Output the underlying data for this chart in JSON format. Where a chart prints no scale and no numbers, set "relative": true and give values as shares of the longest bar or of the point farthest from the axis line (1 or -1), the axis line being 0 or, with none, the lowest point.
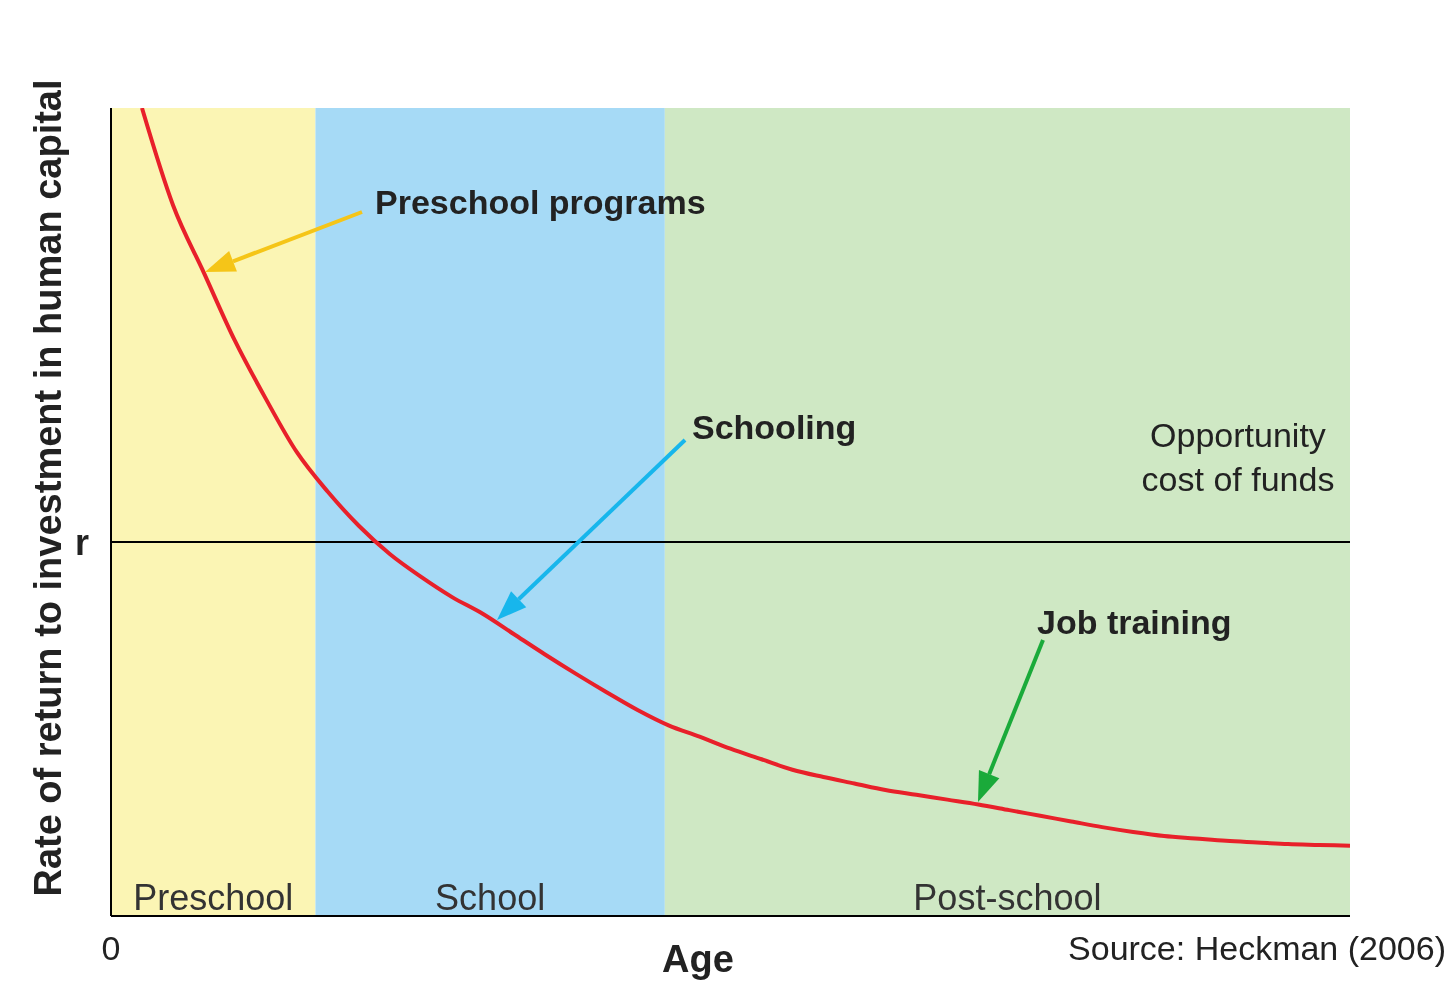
{
  "chart_data": {
    "type": "line",
    "relative": true,
    "xlabel": "Age",
    "ylabel": "Rate of return to investment in human capital",
    "categories": [
      null,
      null,
      null,
      null,
      null,
      null,
      null,
      null,
      null,
      null,
      null,
      null,
      null,
      null,
      null,
      null,
      null,
      null,
      null,
      null,
      null,
      null,
      null,
      null,
      null,
      null,
      null,
      null,
      null,
      null,
      null,
      null,
      null,
      null,
      null,
      null,
      null,
      null,
      null,
      null,
      null
    ],
    "series": [
      {
        "color": "#e8202a",
        "values": [
          null,
          1.0,
          0.88,
          0.796,
          0.712,
          0.64,
          0.574,
          0.525,
          0.483,
          0.448,
          0.42,
          0.395,
          0.374,
          0.349,
          0.324,
          0.3,
          0.277,
          0.255,
          0.236,
          0.222,
          0.207,
          0.194,
          0.181,
          0.172,
          0.164,
          0.156,
          0.15,
          0.144,
          0.138,
          0.131,
          0.124,
          0.117,
          0.11,
          0.104,
          0.099,
          0.096,
          0.093,
          0.091,
          0.089,
          0.088,
          0.087
        ]
      }
    ],
    "ref_lines": [
      {
        "axis": "y",
        "value": 0.463,
        "label": "r",
        "color": "#000000"
      }
    ],
    "annotations": [
      "Preschool programs",
      "Schooling",
      "Job training",
      "Opportunity cost of funds",
      "Source: Heckman (2006)",
      "0",
      "Preschool",
      "School",
      "Post-school"
    ]
  }
}
